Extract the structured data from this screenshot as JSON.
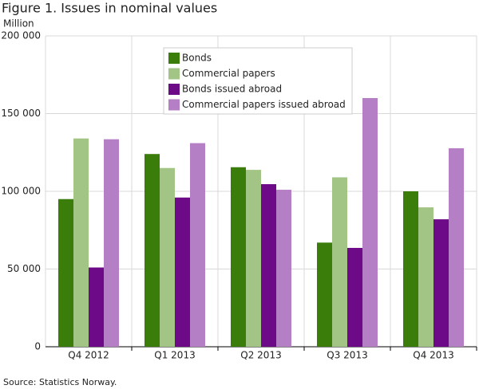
{
  "chart_data": {
    "type": "bar",
    "title": "Figure 1. Issues in nominal values",
    "y_label": "Million",
    "source": "Source: Statistics Norway.",
    "categories": [
      "Q4 2012",
      "Q1 2013",
      "Q2 2013",
      "Q3 2013",
      "Q4 2013"
    ],
    "series": [
      {
        "name": "Bonds",
        "color": "#3a7d0a",
        "values": [
          95000,
          124000,
          115500,
          67000,
          100000
        ]
      },
      {
        "name": "Commercial papers",
        "color": "#a2c585",
        "values": [
          134000,
          115000,
          113800,
          109000,
          89700
        ]
      },
      {
        "name": "Bonds issued abroad",
        "color": "#6c0a87",
        "values": [
          51000,
          96000,
          104600,
          63600,
          82000
        ]
      },
      {
        "name": "Commercial papers issued abroad",
        "color": "#b57fc6",
        "values": [
          133500,
          131000,
          101000,
          160000,
          127700
        ]
      }
    ],
    "ylim": [
      0,
      200000
    ],
    "yticks": [
      0,
      {
        "value": 50000,
        "label": "50 000"
      },
      {
        "value": 100000,
        "label": "100 000"
      },
      {
        "value": 150000,
        "label": "150 000"
      },
      {
        "value": 200000,
        "label": "200 000"
      }
    ],
    "grid": true,
    "legend_position": "top-center"
  }
}
